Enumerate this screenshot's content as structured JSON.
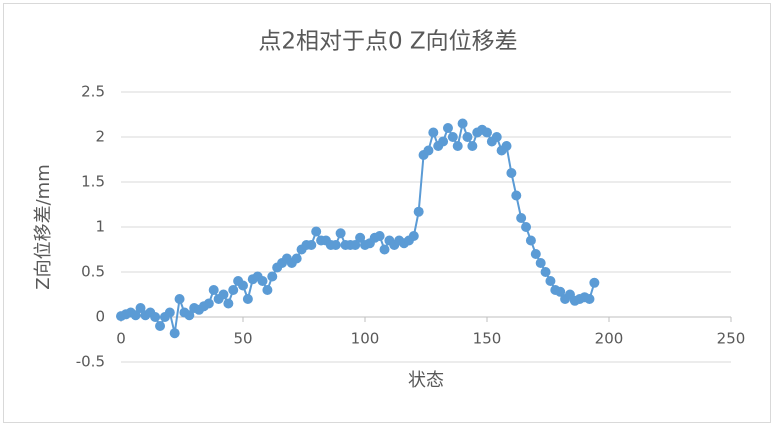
{
  "chart_data": {
    "type": "line",
    "title": "点2相对于点0    Z向位移差",
    "x_label": "状态",
    "y_label": "Z向位移差/mm",
    "color": "#5b9bd5",
    "markers": true,
    "grid": true,
    "x": [
      0,
      2,
      4,
      6,
      8,
      10,
      12,
      14,
      16,
      18,
      20,
      22,
      24,
      26,
      28,
      30,
      32,
      34,
      36,
      38,
      40,
      42,
      44,
      46,
      48,
      50,
      52,
      54,
      56,
      58,
      60,
      62,
      64,
      66,
      68,
      70,
      72,
      74,
      76,
      78,
      80,
      82,
      84,
      86,
      88,
      90,
      92,
      94,
      96,
      98,
      100,
      102,
      104,
      106,
      108,
      110,
      112,
      114,
      116,
      118,
      120,
      122,
      124,
      126,
      128,
      130,
      132,
      134,
      136,
      138,
      140,
      142,
      144,
      146,
      148,
      150,
      152,
      154,
      156,
      158,
      160,
      162,
      164,
      166,
      168,
      170,
      172,
      174,
      176,
      178,
      180,
      182,
      184,
      186,
      188,
      190,
      192,
      194
    ],
    "values": [
      0.01,
      0.03,
      0.05,
      0.02,
      0.1,
      0.02,
      0.05,
      0.0,
      -0.1,
      0.0,
      0.05,
      -0.18,
      0.2,
      0.05,
      0.02,
      0.1,
      0.08,
      0.12,
      0.15,
      0.3,
      0.2,
      0.25,
      0.15,
      0.3,
      0.4,
      0.35,
      0.2,
      0.42,
      0.45,
      0.4,
      0.3,
      0.45,
      0.55,
      0.6,
      0.65,
      0.6,
      0.65,
      0.75,
      0.8,
      0.8,
      0.95,
      0.85,
      0.85,
      0.8,
      0.8,
      0.93,
      0.8,
      0.8,
      0.8,
      0.88,
      0.8,
      0.82,
      0.88,
      0.9,
      0.75,
      0.85,
      0.8,
      0.85,
      0.82,
      0.85,
      0.9,
      1.17,
      1.8,
      1.85,
      2.05,
      1.9,
      1.95,
      2.1,
      2.0,
      1.9,
      2.15,
      2.0,
      1.9,
      2.05,
      2.08,
      2.05,
      1.95,
      2.0,
      1.85,
      1.9,
      1.6,
      1.35,
      1.1,
      1.0,
      0.85,
      0.7,
      0.6,
      0.5,
      0.4,
      0.3,
      0.28,
      0.2,
      0.25,
      0.18,
      0.2,
      0.22,
      0.2,
      0.38
    ],
    "xlim": [
      0,
      250
    ],
    "xticks": [
      0,
      50,
      100,
      150,
      200,
      250
    ],
    "ylim": [
      -0.5,
      2.5
    ],
    "yticks": [
      -0.5,
      0,
      0.5,
      1,
      1.5,
      2,
      2.5
    ]
  }
}
